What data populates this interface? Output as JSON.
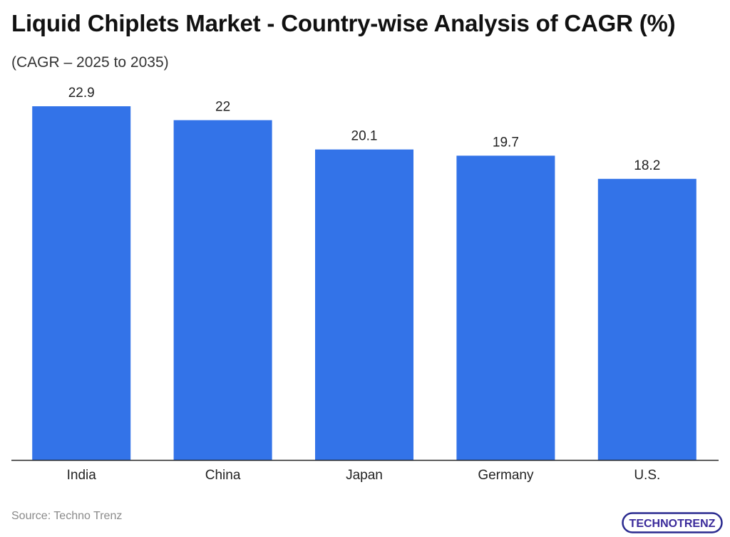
{
  "header": {
    "title": "Liquid Chiplets Market - Country-wise Analysis of CAGR (%)",
    "subtitle": "(CAGR – 2025 to 2035)"
  },
  "footer": {
    "source": "Source: Techno Trenz",
    "logo_text": "TECHNOTRENZ"
  },
  "colors": {
    "bar": "#3373E8",
    "axis": "#222222",
    "label": "#222222"
  },
  "chart_data": {
    "type": "bar",
    "title": "Liquid Chiplets Market - Country-wise Analysis of CAGR (%)",
    "subtitle": "(CAGR – 2025 to 2035)",
    "categories": [
      "India",
      "China",
      "Japan",
      "Germany",
      "U.S."
    ],
    "values": [
      22.9,
      22,
      20.1,
      19.7,
      18.2
    ],
    "value_labels": [
      "22.9",
      "22",
      "20.1",
      "19.7",
      "18.2"
    ],
    "xlabel": "",
    "ylabel": "",
    "ylim": [
      0,
      24
    ],
    "grid": false,
    "legend": "none"
  }
}
